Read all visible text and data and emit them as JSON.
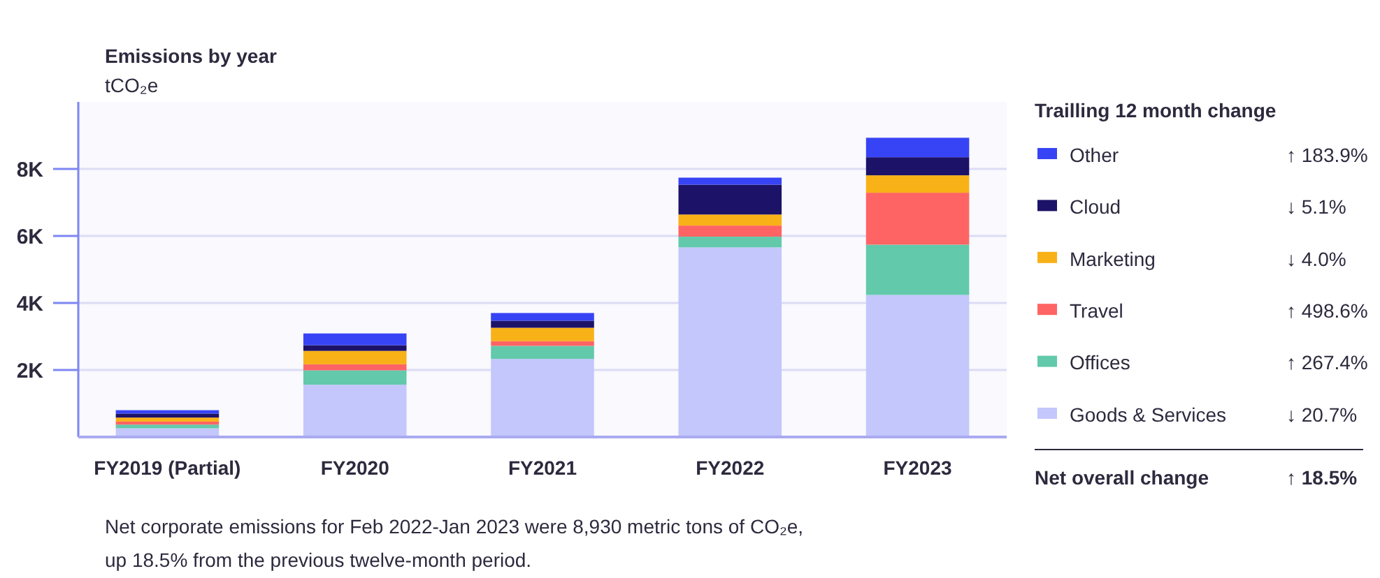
{
  "chart_data": {
    "type": "bar",
    "title": "Emissions by year",
    "ylabel": "tCO₂e",
    "stacked": true,
    "categories": [
      "FY2019 (Partial)",
      "FY2020",
      "FY2021",
      "FY2022",
      "FY2023"
    ],
    "series": [
      {
        "name": "Goods & Services",
        "color": "#c4c7fb",
        "values": [
          260,
          1560,
          2330,
          5660,
          4240
        ]
      },
      {
        "name": "Offices",
        "color": "#62c9ab",
        "values": [
          110,
          430,
          390,
          320,
          1500
        ]
      },
      {
        "name": "Travel",
        "color": "#ff6464",
        "values": [
          90,
          180,
          140,
          330,
          1550
        ]
      },
      {
        "name": "Marketing",
        "color": "#f8b116",
        "values": [
          120,
          400,
          400,
          330,
          520
        ]
      },
      {
        "name": "Cloud",
        "color": "#1c1268",
        "values": [
          120,
          170,
          210,
          890,
          540
        ]
      },
      {
        "name": "Other",
        "color": "#3744f5",
        "values": [
          100,
          350,
          230,
          210,
          580
        ]
      }
    ],
    "ylim": [
      0,
      10000
    ],
    "yticks": [
      {
        "value": 2000,
        "label": "2K"
      },
      {
        "value": 4000,
        "label": "4K"
      },
      {
        "value": 6000,
        "label": "6K"
      },
      {
        "value": 8000,
        "label": "8K"
      }
    ],
    "grid": "y",
    "legend": "right",
    "legend_title": "Trailling 12 month change",
    "annotations": [
      "↓ 20.7%",
      "↑ 267.4%",
      "↑ 498.6%",
      "↓ 4.0%",
      "↓ 5.1%",
      "↑ 183.9%",
      "Net overall change",
      "↑ 18.5%",
      "Net corporate emissions for Feb 2022-Jan 2023 were 8,930 metric tons of CO₂e, up 18.5% from the previous twelve-month period."
    ]
  }
}
